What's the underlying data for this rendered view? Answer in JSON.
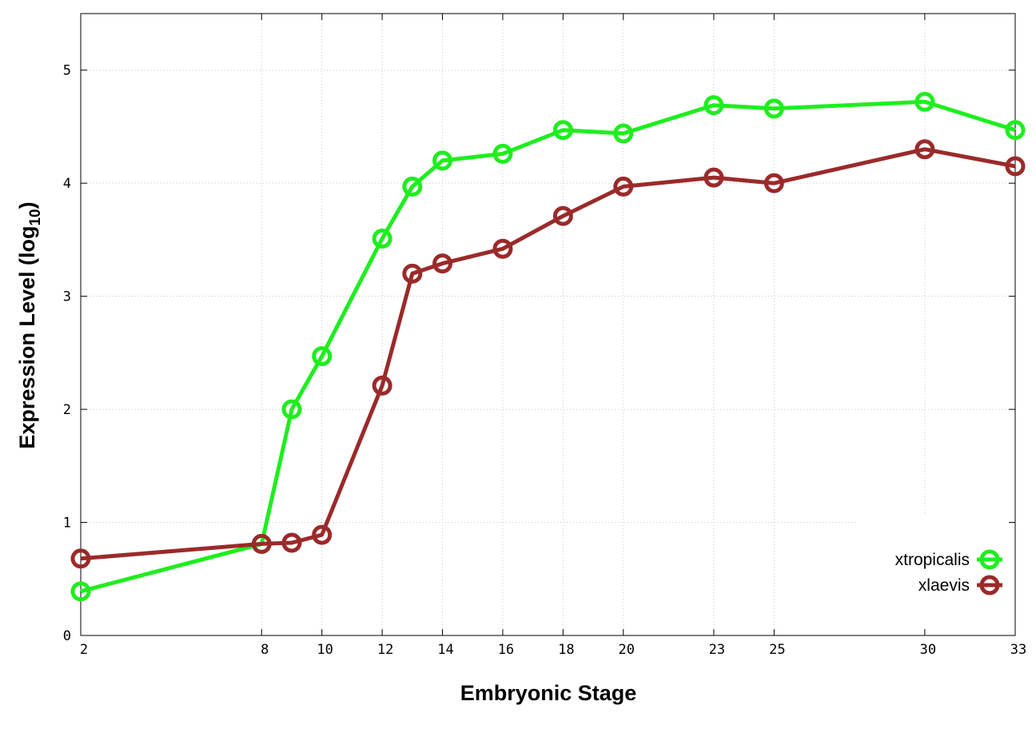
{
  "chart_data": {
    "type": "line",
    "xlabel": "Embryonic Stage",
    "ylabel_main": "Expression Level (log",
    "ylabel_sub": "10",
    "ylabel_close": ")",
    "x_ticks": [
      2,
      8,
      10,
      12,
      14,
      16,
      18,
      20,
      23,
      25,
      30,
      33
    ],
    "y_ticks": [
      0,
      1,
      2,
      3,
      4,
      5
    ],
    "xlim": [
      2,
      33
    ],
    "ylim": [
      0,
      5.5
    ],
    "grid": true,
    "legend_position": "bottom-right",
    "series": [
      {
        "name": "xtropicalis",
        "color": "#1eee1e",
        "x": [
          2,
          8,
          9,
          10,
          12,
          13,
          14,
          16,
          18,
          20,
          23,
          25,
          30,
          33
        ],
        "y": [
          0.39,
          0.81,
          2.0,
          2.47,
          3.51,
          3.97,
          4.2,
          4.26,
          4.47,
          4.44,
          4.69,
          4.66,
          4.72,
          4.47
        ]
      },
      {
        "name": "xlaevis",
        "color": "#9b2a2a",
        "x": [
          2,
          8,
          9,
          10,
          12,
          13,
          14,
          16,
          18,
          20,
          23,
          25,
          30,
          33
        ],
        "y": [
          0.68,
          0.81,
          0.82,
          0.89,
          2.21,
          3.2,
          3.29,
          3.42,
          3.71,
          3.97,
          4.05,
          4.0,
          4.3,
          4.15
        ]
      }
    ]
  }
}
